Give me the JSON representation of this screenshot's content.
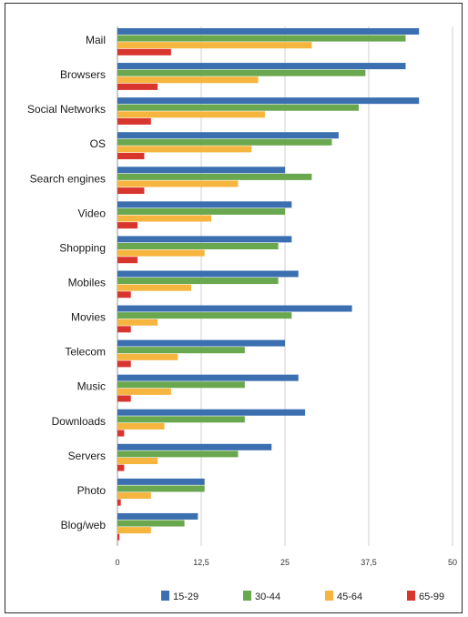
{
  "chart_data": {
    "type": "bar",
    "orientation": "horizontal",
    "categories": [
      "Mail",
      "Browsers",
      "Social Networks",
      "OS",
      "Search engines",
      "Video",
      "Shopping",
      "Mobiles",
      "Movies",
      "Telecom",
      "Music",
      "Downloads",
      "Servers",
      "Photo",
      "Blog/web"
    ],
    "series": [
      {
        "name": "15-29",
        "color": "#3b6fb0",
        "values": [
          45,
          43,
          45,
          33,
          25,
          26,
          26,
          27,
          35,
          25,
          27,
          28,
          23,
          13,
          12
        ]
      },
      {
        "name": "30-44",
        "color": "#6aa84f",
        "values": [
          43,
          37,
          36,
          32,
          29,
          25,
          24,
          24,
          26,
          19,
          19,
          19,
          18,
          13,
          10
        ]
      },
      {
        "name": "45-64",
        "color": "#f6b53f",
        "values": [
          29,
          21,
          22,
          20,
          18,
          14,
          13,
          11,
          6,
          9,
          8,
          7,
          6,
          5,
          5
        ]
      },
      {
        "name": "65-99",
        "color": "#d9352f",
        "values": [
          8,
          6,
          5,
          4,
          4,
          3,
          3,
          2,
          2,
          2,
          2,
          1,
          1,
          0.5,
          0.3
        ]
      }
    ],
    "xticks": [
      "0",
      "12,5",
      "25",
      "37,5",
      "50"
    ],
    "xlim": [
      0,
      50
    ],
    "grid": true,
    "legend": "bottom"
  }
}
